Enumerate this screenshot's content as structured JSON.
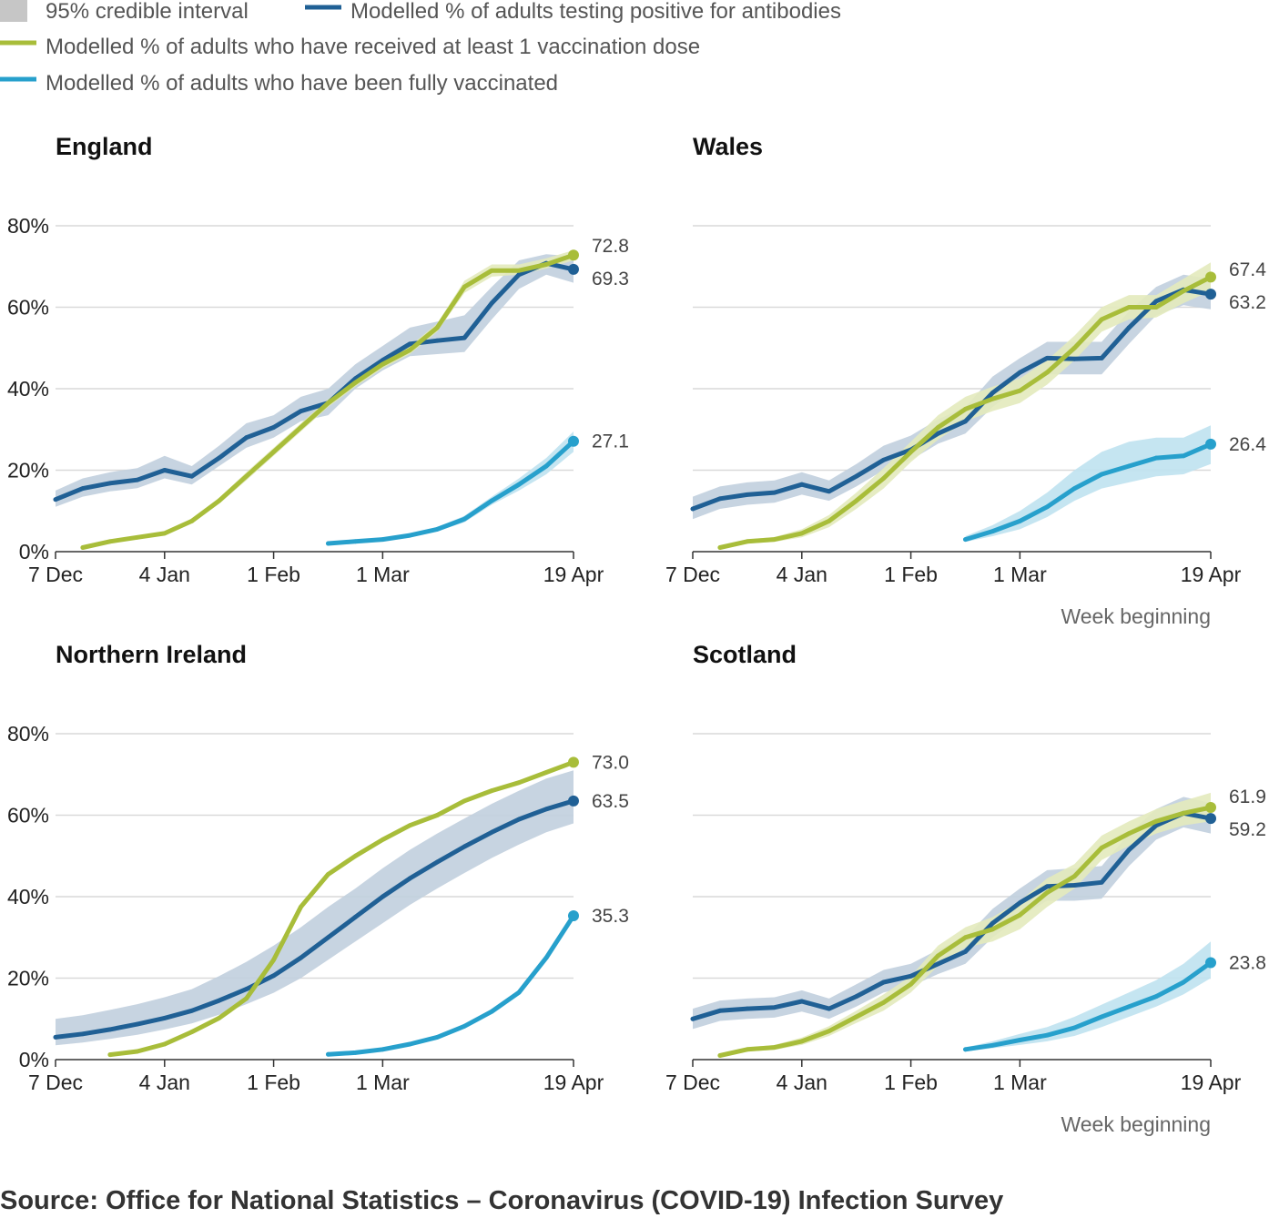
{
  "legend": {
    "items": [
      {
        "label": "95% credible interval",
        "kind": "swatch",
        "color": "#c6c6c6"
      },
      {
        "label": "Modelled % of adults testing positive for antibodies",
        "kind": "line",
        "color": "#206095"
      },
      {
        "label": "Modelled % of adults who have received at least 1 vaccination dose",
        "kind": "line",
        "color": "#a8bd3a"
      },
      {
        "label": "Modelled % of adults who have been fully vaccinated",
        "kind": "line",
        "color": "#27a0cc"
      }
    ]
  },
  "source": "Source: Office for National Statistics – Coronavirus (COVID-19) Infection Survey",
  "colors": {
    "antibodies": "#206095",
    "antibodies_band": "#c1cfde",
    "first_dose": "#a8bd3a",
    "first_dose_band": "#e3eabd",
    "fully_vaccinated": "#27a0cc",
    "fully_vaccinated_band": "#bfe2f0",
    "gridline": "#d9d9d9",
    "axis": "#333333"
  },
  "chart_data": [
    {
      "type": "line",
      "title": "England",
      "x_tick_labels": [
        "7 Dec",
        "4 Jan",
        "1 Feb",
        "1 Mar",
        "19 Apr"
      ],
      "x_tick_weeks": [
        0,
        4,
        8,
        12,
        19
      ],
      "xlabel": "",
      "y_tick_labels": [
        "0%",
        "20%",
        "40%",
        "60%",
        "80%"
      ],
      "y_ticks": [
        0,
        20,
        40,
        60,
        80
      ],
      "ylim": [
        0,
        80
      ],
      "series": [
        {
          "name": "Modelled % of adults testing positive for antibodies",
          "key": "antibodies",
          "x": [
            0,
            1,
            2,
            3,
            4,
            5,
            6,
            7,
            8,
            9,
            10,
            11,
            12,
            13,
            14,
            15,
            16,
            17,
            18,
            19
          ],
          "values": [
            12.8,
            15.5,
            16.8,
            17.6,
            20.0,
            18.5,
            23.0,
            28.0,
            30.5,
            34.5,
            36.5,
            42.5,
            47.0,
            51.0,
            51.8,
            52.5,
            61.0,
            68.0,
            70.8,
            69.3
          ],
          "lower": [
            11.0,
            13.5,
            14.8,
            15.6,
            18.0,
            16.5,
            21.0,
            25.5,
            28.0,
            32.0,
            33.5,
            40.0,
            44.5,
            48.0,
            48.5,
            49.0,
            57.0,
            64.5,
            68.0,
            66.0
          ],
          "upper": [
            15.0,
            18.0,
            19.5,
            20.5,
            23.5,
            21.0,
            26.0,
            31.5,
            33.5,
            38.0,
            40.0,
            46.0,
            50.5,
            55.0,
            56.5,
            58.0,
            65.0,
            71.5,
            73.0,
            72.5
          ],
          "end_label": "69.3"
        },
        {
          "name": "Modelled % of adults who have received at least 1 vaccination dose",
          "key": "first_dose",
          "x": [
            1,
            2,
            3,
            4,
            5,
            6,
            7,
            8,
            9,
            10,
            11,
            12,
            13,
            14,
            15,
            16,
            17,
            18,
            19
          ],
          "values": [
            1.0,
            2.5,
            3.5,
            4.5,
            7.5,
            12.5,
            18.5,
            24.5,
            30.5,
            36.5,
            41.5,
            46.0,
            49.5,
            55.0,
            65.0,
            69.0,
            69.0,
            70.5,
            72.8
          ],
          "lower": [
            0.8,
            2.2,
            3.2,
            4.2,
            7.0,
            11.8,
            17.5,
            23.5,
            29.5,
            35.5,
            40.5,
            45.0,
            48.5,
            54.0,
            63.5,
            67.5,
            68.0,
            69.5,
            71.5
          ],
          "upper": [
            1.2,
            2.8,
            3.8,
            4.8,
            8.0,
            13.2,
            19.5,
            25.5,
            31.5,
            37.5,
            42.5,
            47.0,
            50.5,
            56.0,
            66.5,
            70.5,
            70.5,
            72.0,
            74.0
          ],
          "end_label": "72.8"
        },
        {
          "name": "Modelled % of adults who have been fully vaccinated",
          "key": "fully_vaccinated",
          "x": [
            10,
            11,
            12,
            13,
            14,
            15,
            16,
            17,
            18,
            19
          ],
          "values": [
            2.0,
            2.5,
            3.0,
            4.0,
            5.5,
            8.0,
            12.5,
            16.5,
            21.0,
            27.1
          ],
          "lower": [
            1.8,
            2.2,
            2.7,
            3.6,
            5.0,
            7.2,
            11.5,
            15.0,
            19.0,
            24.5
          ],
          "upper": [
            2.2,
            2.8,
            3.3,
            4.4,
            6.0,
            8.8,
            13.5,
            18.0,
            23.0,
            29.5
          ],
          "end_label": "27.1"
        }
      ]
    },
    {
      "type": "line",
      "title": "Wales",
      "x_tick_labels": [
        "7 Dec",
        "4 Jan",
        "1 Feb",
        "1 Mar",
        "19 Apr"
      ],
      "x_tick_weeks": [
        0,
        4,
        8,
        12,
        19
      ],
      "xlabel": "Week beginning",
      "y_ticks": [
        0,
        20,
        40,
        60,
        80
      ],
      "ylim": [
        0,
        80
      ],
      "series": [
        {
          "name": "Modelled % of adults testing positive for antibodies",
          "key": "antibodies",
          "x": [
            0,
            1,
            2,
            3,
            4,
            5,
            6,
            7,
            8,
            9,
            10,
            11,
            12,
            13,
            14,
            15,
            16,
            17,
            18,
            19
          ],
          "values": [
            10.5,
            13.0,
            14.0,
            14.5,
            16.5,
            14.8,
            18.5,
            22.5,
            25.0,
            29.0,
            32.0,
            39.0,
            44.0,
            47.5,
            47.3,
            47.5,
            55.0,
            61.5,
            64.3,
            63.2
          ],
          "lower": [
            8.0,
            10.5,
            11.5,
            12.0,
            14.0,
            12.5,
            16.0,
            20.0,
            22.5,
            26.5,
            29.0,
            35.5,
            40.5,
            43.5,
            43.5,
            43.5,
            51.0,
            58.0,
            60.5,
            59.5
          ],
          "upper": [
            13.5,
            16.0,
            17.0,
            17.5,
            19.5,
            17.5,
            21.5,
            26.0,
            28.5,
            32.5,
            35.5,
            43.0,
            47.5,
            51.5,
            51.5,
            51.5,
            59.0,
            65.0,
            68.0,
            67.0
          ],
          "end_label": "63.2"
        },
        {
          "name": "Modelled % of adults who have received at least 1 vaccination dose",
          "key": "first_dose",
          "x": [
            1,
            2,
            3,
            4,
            5,
            6,
            7,
            8,
            9,
            10,
            11,
            12,
            13,
            14,
            15,
            16,
            17,
            18,
            19
          ],
          "values": [
            1.0,
            2.5,
            3.0,
            4.5,
            7.5,
            12.5,
            18.0,
            24.5,
            30.5,
            35.0,
            37.5,
            39.5,
            44.0,
            50.0,
            57.0,
            60.0,
            60.0,
            64.0,
            67.4
          ],
          "lower": [
            0.7,
            2.0,
            2.4,
            3.5,
            6.0,
            10.5,
            15.5,
            22.0,
            27.5,
            32.0,
            34.5,
            36.5,
            41.0,
            47.0,
            54.0,
            57.0,
            57.5,
            61.0,
            64.0
          ],
          "upper": [
            1.3,
            3.0,
            3.6,
            5.5,
            9.0,
            14.5,
            20.5,
            27.0,
            33.5,
            38.0,
            40.5,
            42.5,
            47.0,
            53.0,
            60.0,
            63.0,
            63.0,
            67.0,
            71.0
          ],
          "end_label": "67.4"
        },
        {
          "name": "Modelled % of adults who have been fully vaccinated",
          "key": "fully_vaccinated",
          "x": [
            10,
            11,
            12,
            13,
            14,
            15,
            16,
            17,
            18,
            19
          ],
          "values": [
            3.0,
            5.0,
            7.5,
            11.0,
            15.5,
            19.0,
            21.0,
            23.0,
            23.5,
            26.4
          ],
          "lower": [
            2.4,
            3.8,
            5.5,
            8.5,
            12.5,
            15.5,
            17.0,
            18.5,
            19.0,
            21.5
          ],
          "upper": [
            3.8,
            6.5,
            10.0,
            14.5,
            20.0,
            24.5,
            27.0,
            28.0,
            28.0,
            31.0
          ],
          "end_label": "26.4"
        }
      ]
    },
    {
      "type": "line",
      "title": "Northern Ireland",
      "x_tick_labels": [
        "7 Dec",
        "4 Jan",
        "1 Feb",
        "1 Mar",
        "19 Apr"
      ],
      "x_tick_weeks": [
        0,
        4,
        8,
        12,
        19
      ],
      "xlabel": "",
      "y_tick_labels": [
        "0%",
        "20%",
        "40%",
        "60%",
        "80%"
      ],
      "y_ticks": [
        0,
        20,
        40,
        60,
        80
      ],
      "ylim": [
        0,
        80
      ],
      "series": [
        {
          "name": "Modelled % of adults testing positive for antibodies",
          "key": "antibodies",
          "x": [
            0,
            1,
            2,
            3,
            4,
            5,
            6,
            7,
            8,
            9,
            10,
            11,
            12,
            13,
            14,
            15,
            16,
            17,
            18,
            19
          ],
          "values": [
            5.5,
            6.3,
            7.4,
            8.7,
            10.2,
            12.0,
            14.5,
            17.3,
            20.6,
            25.0,
            30.0,
            35.0,
            40.0,
            44.5,
            48.5,
            52.3,
            55.8,
            59.0,
            61.5,
            63.5
          ],
          "lower": [
            3.5,
            4.2,
            5.1,
            6.1,
            7.4,
            8.9,
            11.0,
            13.6,
            16.4,
            20.0,
            24.5,
            29.0,
            33.5,
            38.0,
            42.0,
            45.8,
            49.5,
            52.8,
            55.8,
            58.0
          ],
          "upper": [
            10.0,
            10.9,
            12.2,
            13.6,
            15.3,
            17.3,
            20.5,
            24.0,
            28.0,
            32.5,
            37.5,
            42.0,
            47.0,
            51.5,
            55.5,
            59.2,
            62.8,
            66.0,
            69.0,
            71.0
          ],
          "end_label": "63.5"
        },
        {
          "name": "Modelled % of adults who have received at least 1 vaccination dose",
          "key": "first_dose",
          "x": [
            2,
            3,
            4,
            5,
            6,
            7,
            8,
            9,
            10,
            11,
            12,
            13,
            14,
            15,
            16,
            17,
            18,
            19
          ],
          "values": [
            1.2,
            2.0,
            3.8,
            6.8,
            10.2,
            15.0,
            24.5,
            37.5,
            45.5,
            50.0,
            54.0,
            57.5,
            60.0,
            63.5,
            66.0,
            68.0,
            70.5,
            73.0
          ],
          "end_label": "73.0"
        },
        {
          "name": "Modelled % of adults who have been fully vaccinated",
          "key": "fully_vaccinated",
          "x": [
            10,
            11,
            12,
            13,
            14,
            15,
            16,
            17,
            18,
            19
          ],
          "values": [
            1.3,
            1.7,
            2.5,
            3.8,
            5.5,
            8.2,
            11.8,
            16.5,
            25.0,
            35.3
          ],
          "end_label": "35.3"
        }
      ]
    },
    {
      "type": "line",
      "title": "Scotland",
      "x_tick_labels": [
        "7 Dec",
        "4 Jan",
        "1 Feb",
        "1 Mar",
        "19 Apr"
      ],
      "x_tick_weeks": [
        0,
        4,
        8,
        12,
        19
      ],
      "xlabel": "Week beginning",
      "y_ticks": [
        0,
        20,
        40,
        60,
        80
      ],
      "ylim": [
        0,
        80
      ],
      "series": [
        {
          "name": "Modelled % of adults testing positive for antibodies",
          "key": "antibodies",
          "x": [
            0,
            1,
            2,
            3,
            4,
            5,
            6,
            7,
            8,
            9,
            10,
            11,
            12,
            13,
            14,
            15,
            16,
            17,
            18,
            19
          ],
          "values": [
            10.0,
            12.0,
            12.5,
            12.8,
            14.3,
            12.5,
            15.5,
            19.0,
            20.5,
            23.5,
            26.5,
            33.5,
            38.5,
            42.5,
            42.8,
            43.5,
            51.5,
            57.5,
            60.5,
            59.2
          ],
          "lower": [
            7.5,
            9.5,
            10.0,
            10.3,
            11.8,
            10.0,
            13.0,
            16.5,
            18.0,
            21.0,
            23.5,
            30.0,
            35.0,
            39.0,
            39.0,
            39.5,
            47.5,
            54.0,
            57.0,
            55.5
          ],
          "upper": [
            12.5,
            14.5,
            15.0,
            15.3,
            17.0,
            15.0,
            18.5,
            22.0,
            23.5,
            27.0,
            30.0,
            37.0,
            42.0,
            46.5,
            47.0,
            47.5,
            55.5,
            61.5,
            64.5,
            63.0
          ],
          "end_label": "59.2"
        },
        {
          "name": "Modelled % of adults who have received at least 1 vaccination dose",
          "key": "first_dose",
          "x": [
            1,
            2,
            3,
            4,
            5,
            6,
            7,
            8,
            9,
            10,
            11,
            12,
            13,
            14,
            15,
            16,
            17,
            18,
            19
          ],
          "values": [
            1.0,
            2.5,
            3.0,
            4.5,
            7.0,
            10.5,
            14.0,
            18.5,
            25.5,
            30.0,
            32.0,
            35.5,
            41.0,
            45.0,
            52.0,
            55.5,
            58.5,
            60.5,
            61.9
          ],
          "lower": [
            0.7,
            2.0,
            2.4,
            3.6,
            5.8,
            9.0,
            12.0,
            16.5,
            23.0,
            27.5,
            29.0,
            32.0,
            37.5,
            42.0,
            49.0,
            52.5,
            55.5,
            57.5,
            58.5
          ],
          "upper": [
            1.3,
            3.0,
            3.6,
            5.4,
            8.2,
            12.0,
            16.0,
            20.5,
            28.0,
            32.5,
            35.0,
            39.0,
            44.5,
            48.0,
            55.0,
            58.5,
            61.5,
            63.5,
            65.5
          ],
          "end_label": "61.9"
        },
        {
          "name": "Modelled % of adults who have been fully vaccinated",
          "key": "fully_vaccinated",
          "x": [
            10,
            11,
            12,
            13,
            14,
            15,
            16,
            17,
            18,
            19
          ],
          "values": [
            2.5,
            3.5,
            4.8,
            6.0,
            7.8,
            10.5,
            13.0,
            15.5,
            19.0,
            23.8
          ],
          "lower": [
            2.0,
            2.8,
            3.6,
            4.5,
            5.8,
            8.0,
            10.5,
            13.0,
            16.0,
            20.0
          ],
          "upper": [
            3.0,
            4.5,
            6.3,
            8.0,
            10.5,
            13.5,
            16.5,
            19.5,
            23.5,
            29.0
          ],
          "end_label": "23.8"
        }
      ]
    }
  ]
}
